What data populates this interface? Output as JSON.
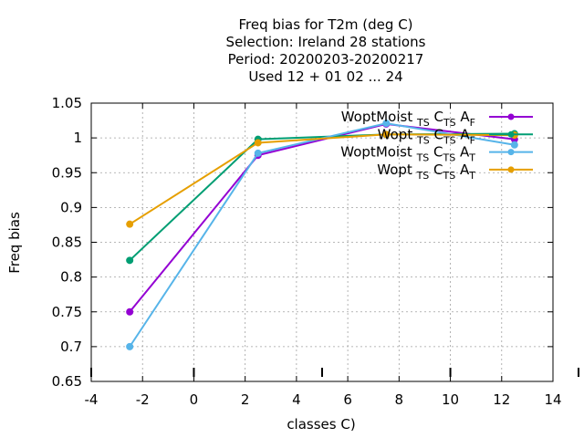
{
  "chart_data": {
    "type": "line",
    "title_lines": [
      "Freq bias  for T2m (deg C)",
      "Selection: Ireland      28 stations",
      "Period: 20200203-20200217",
      "Used  12 + 01 02 ... 24"
    ],
    "xlabel": "classes C)",
    "ylabel": "Freq bias",
    "xlim": [
      -4,
      14
    ],
    "ylim": [
      0.65,
      1.05
    ],
    "xticks": [
      "-4",
      "-2",
      "0",
      "2",
      "4",
      "6",
      "8",
      "10",
      "12",
      "14"
    ],
    "yticks": [
      "0.65",
      "0.7",
      "0.75",
      "0.8",
      "0.85",
      "0.9",
      "0.95",
      "1",
      "1.05"
    ],
    "grid": true,
    "legend_position": "top-right",
    "series": [
      {
        "name": "WoptMoist TS CTS A F",
        "label_base": "WoptMoist",
        "label_subs": [
          "TS",
          "TS",
          "F"
        ],
        "color": "#9400d3",
        "points": [
          [
            -2.5,
            0.75
          ],
          [
            2.5,
            0.975
          ],
          [
            7.5,
            1.02
          ],
          [
            12.5,
            0.998
          ]
        ]
      },
      {
        "name": "Wopt TS CTS A F",
        "label_base": "Wopt",
        "label_subs": [
          "TS",
          "TS",
          "F"
        ],
        "color": "#009e73",
        "points": [
          [
            -2.5,
            0.824
          ],
          [
            2.5,
            0.998
          ],
          [
            7.5,
            1.005
          ],
          [
            12.5,
            1.006
          ]
        ]
      },
      {
        "name": "WoptMoist TS CTS A T",
        "label_base": "WoptMoist",
        "label_subs": [
          "TS",
          "TS",
          "T"
        ],
        "color": "#56b4e9",
        "points": [
          [
            -2.5,
            0.7
          ],
          [
            2.5,
            0.978
          ],
          [
            7.5,
            1.021
          ],
          [
            12.5,
            0.99
          ]
        ]
      },
      {
        "name": "Wopt TS CTS A T",
        "label_base": "Wopt",
        "label_subs": [
          "TS",
          "TS",
          "T"
        ],
        "color": "#e69f00",
        "points": [
          [
            -2.5,
            0.876
          ],
          [
            2.5,
            0.993
          ],
          [
            7.5,
            1.005
          ],
          [
            12.5,
            1.004
          ]
        ]
      }
    ]
  }
}
